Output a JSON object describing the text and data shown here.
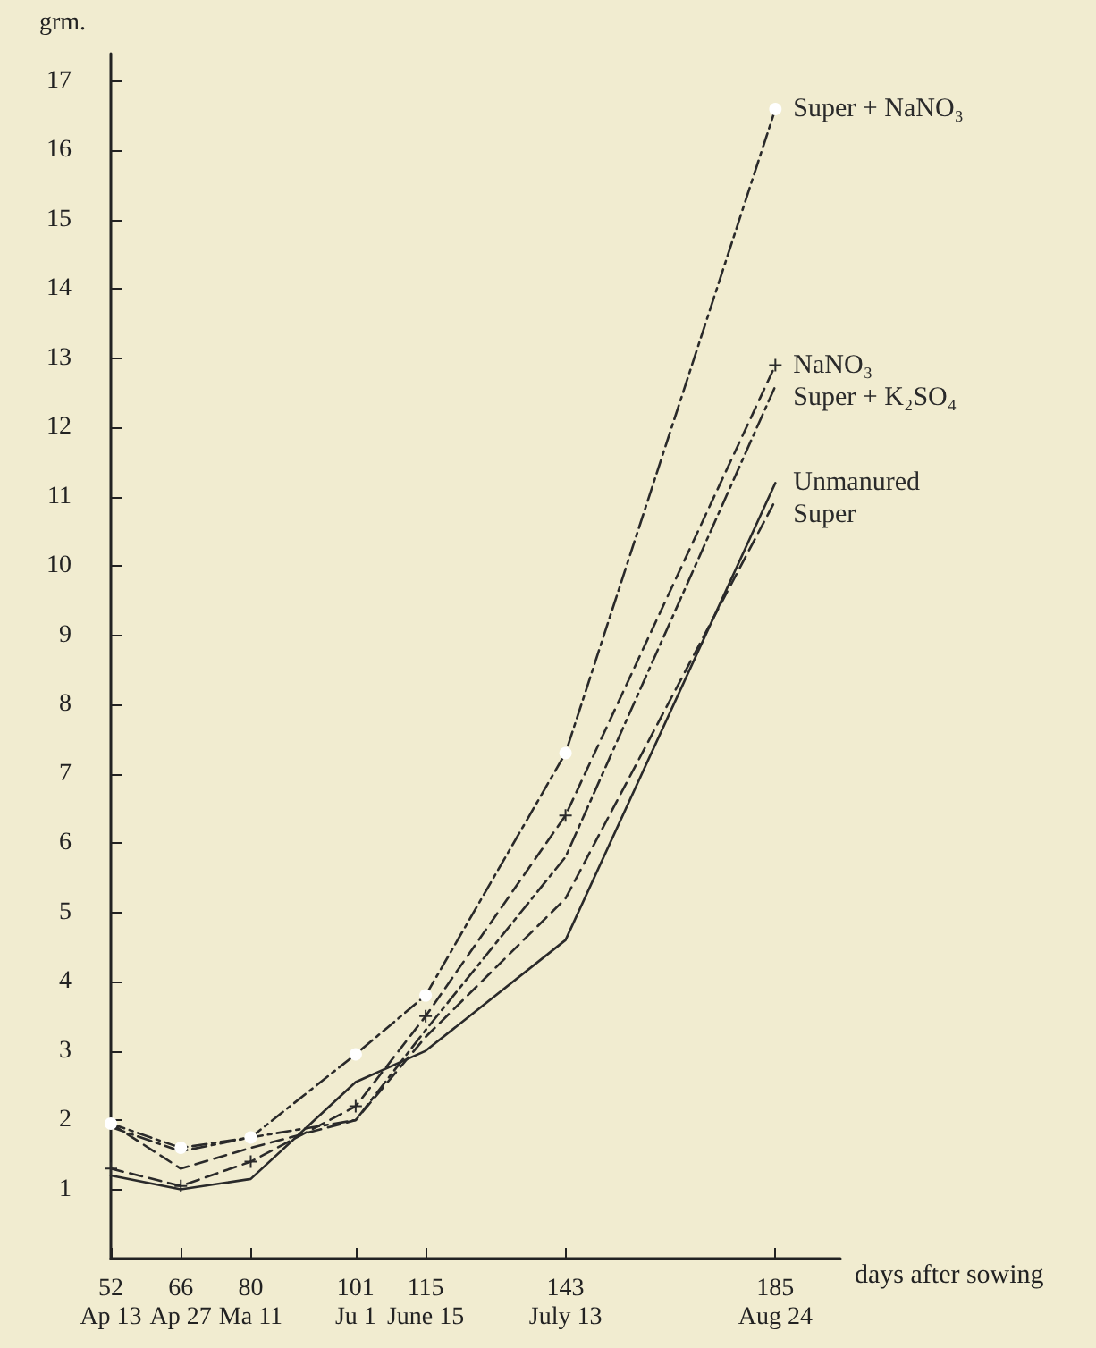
{
  "chart_data": {
    "type": "line",
    "ylabel": "grm.",
    "xlabel": "days after sowing",
    "x": [
      52,
      66,
      80,
      101,
      115,
      143,
      185
    ],
    "xlim": [
      52,
      198
    ],
    "ylim": [
      0,
      17.4
    ],
    "xticks": [
      52,
      66,
      80,
      101,
      115,
      143,
      185
    ],
    "x2lim": [
      "--04-13",
      "--09-06"
    ],
    "x2ticks": [
      {
        "value": "--04-13",
        "label": "Ap 13"
      },
      {
        "value": "--04-27",
        "label": "Ap 27"
      },
      {
        "value": "--05-11",
        "label": "Ma 11"
      },
      {
        "value": "--06-01",
        "label": "Ju 1"
      },
      {
        "value": "--06-15",
        "label": "June 15"
      },
      {
        "value": "--07-13",
        "label": "July 13"
      },
      {
        "value": "--08-24",
        "label": "Aug 24"
      }
    ],
    "yticks": [
      1,
      2,
      3,
      4,
      5,
      6,
      7,
      8,
      9,
      10,
      11,
      12,
      13,
      14,
      15,
      16,
      17
    ],
    "grid": false,
    "legend": false,
    "series": [
      {
        "name": "Super + NaNO₃",
        "color": "#2a2a2a",
        "line_style": "dashdot",
        "marker": "circle",
        "values": [
          1.95,
          1.6,
          1.75,
          2.95,
          3.8,
          7.3,
          16.6
        ]
      },
      {
        "name": "NaNO₃",
        "color": "#2a2a2a",
        "line_style": "dashed",
        "marker": "cross",
        "values": [
          1.3,
          1.05,
          1.4,
          2.2,
          3.5,
          6.4,
          12.9
        ]
      },
      {
        "name": "Super + K₂SO₄",
        "color": "#2a2a2a",
        "line_style": "dashdot",
        "marker": "none",
        "values": [
          1.9,
          1.55,
          1.75,
          2.0,
          3.3,
          5.8,
          12.6
        ]
      },
      {
        "name": "Unmanured",
        "color": "#2a2a2a",
        "line_style": "solid",
        "marker": "none",
        "values": [
          1.2,
          1.0,
          1.15,
          2.55,
          3.0,
          4.6,
          11.2
        ]
      },
      {
        "name": "Super",
        "color": "#2a2a2a",
        "line_style": "dashed",
        "marker": "none",
        "values": [
          1.95,
          1.3,
          1.6,
          2.0,
          3.2,
          5.2,
          10.95
        ]
      }
    ]
  }
}
